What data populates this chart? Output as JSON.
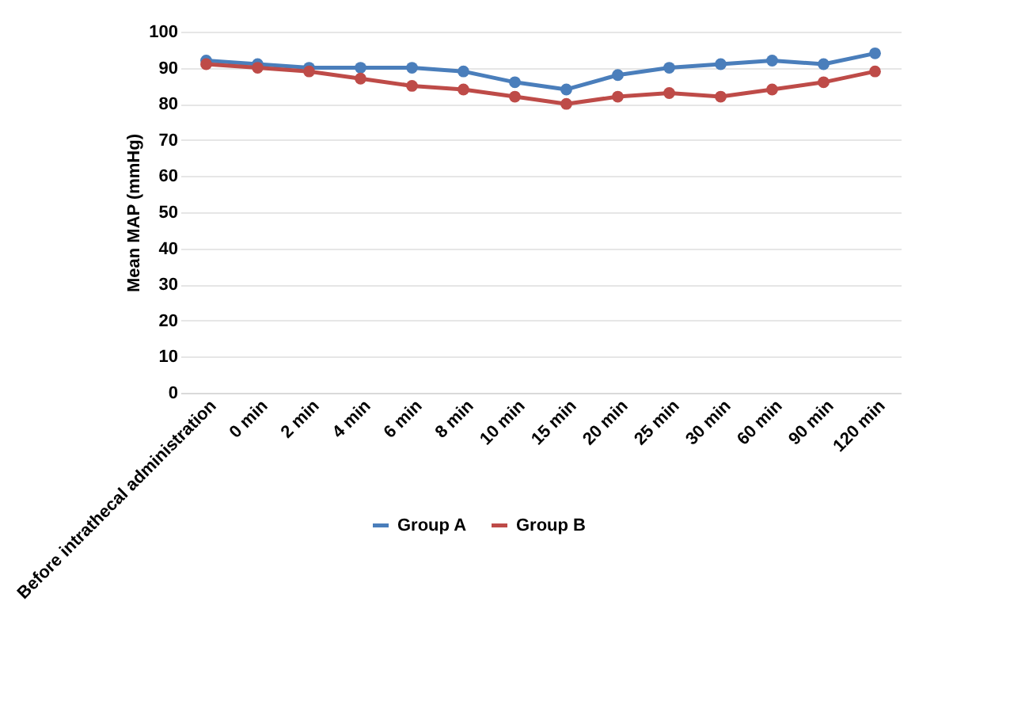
{
  "chart_data": {
    "type": "line",
    "ylabel": "Mean MAP (mmHg)",
    "categories": [
      "Before intrathecal administration",
      "0 min",
      "2 min",
      "4 min",
      "6 min",
      "8 min",
      "10 min",
      "15 min",
      "20 min",
      "25 min",
      "30 min",
      "60 min",
      "90 min",
      "120 min"
    ],
    "series": [
      {
        "name": "Group A",
        "color": "#4a7ebb",
        "values": [
          92,
          91,
          90,
          90,
          90,
          89,
          86,
          84,
          88,
          90,
          91,
          92,
          91,
          94
        ]
      },
      {
        "name": "Group B",
        "color": "#be4b48",
        "values": [
          91,
          90,
          89,
          87,
          85,
          84,
          82,
          80,
          82,
          83,
          82,
          84,
          86,
          89
        ]
      }
    ],
    "ylim": [
      0,
      100
    ],
    "yticks": [
      0,
      10,
      20,
      30,
      40,
      50,
      60,
      70,
      80,
      90,
      100
    ],
    "grid": "y",
    "legend": "bottom",
    "marker": "circle",
    "line_style": "solid"
  }
}
